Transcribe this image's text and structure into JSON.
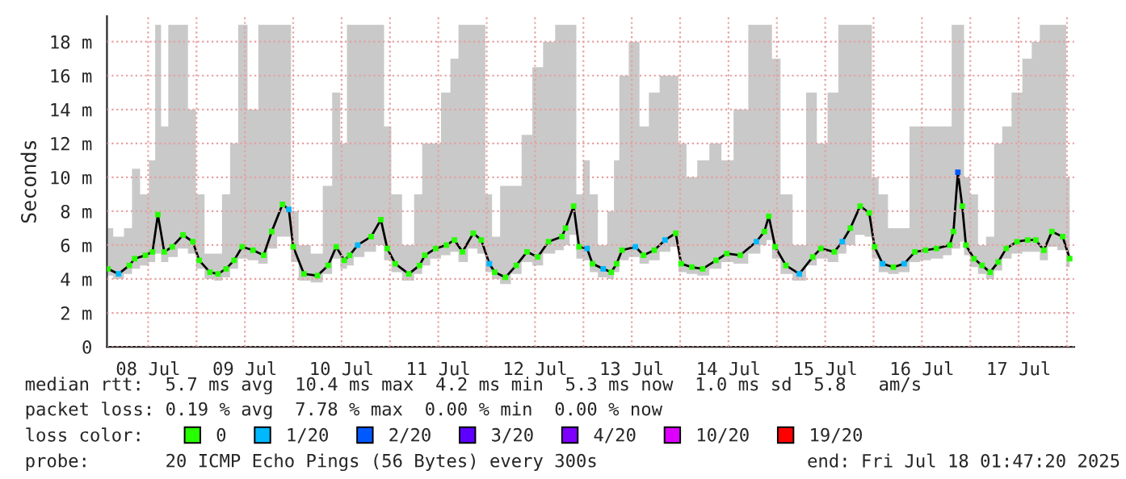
{
  "chart_data": {
    "type": "line",
    "ylabel": "Seconds",
    "legend_title": "loss color:",
    "legend": "bottom",
    "grid": true,
    "marker": "square",
    "xlim": [
      "2025-07-08T01:47",
      "2025-07-18T01:47"
    ],
    "xticks": [
      {
        "value": "2025-07-08T12:00",
        "label": "08 Jul"
      },
      {
        "value": "2025-07-09T00:00",
        "label": null
      },
      {
        "value": "2025-07-09T12:00",
        "label": "09 Jul"
      },
      {
        "value": "2025-07-10T00:00",
        "label": null
      },
      {
        "value": "2025-07-10T12:00",
        "label": "10 Jul"
      },
      {
        "value": "2025-07-11T00:00",
        "label": null
      },
      {
        "value": "2025-07-11T12:00",
        "label": "11 Jul"
      },
      {
        "value": "2025-07-12T00:00",
        "label": null
      },
      {
        "value": "2025-07-12T12:00",
        "label": "12 Jul"
      },
      {
        "value": "2025-07-13T00:00",
        "label": null
      },
      {
        "value": "2025-07-13T12:00",
        "label": "13 Jul"
      },
      {
        "value": "2025-07-14T00:00",
        "label": null
      },
      {
        "value": "2025-07-14T12:00",
        "label": "14 Jul"
      },
      {
        "value": "2025-07-15T00:00",
        "label": null
      },
      {
        "value": "2025-07-15T12:00",
        "label": "15 Jul"
      },
      {
        "value": "2025-07-16T00:00",
        "label": null
      },
      {
        "value": "2025-07-16T12:00",
        "label": "16 Jul"
      },
      {
        "value": "2025-07-17T00:00",
        "label": null
      },
      {
        "value": "2025-07-17T12:00",
        "label": "17 Jul"
      },
      {
        "value": "2025-07-18T00:00",
        "label": null
      }
    ],
    "ylim": [
      0,
      19.5
    ],
    "yticks": [
      0,
      {
        "value": 2,
        "label": "2 m"
      },
      {
        "value": 4,
        "label": "4 m"
      },
      {
        "value": 6,
        "label": "6 m"
      },
      {
        "value": 8,
        "label": "8 m"
      },
      {
        "value": 10,
        "label": "10 m"
      },
      {
        "value": 12,
        "label": "12 m"
      },
      {
        "value": 14,
        "label": "14 m"
      },
      {
        "value": 16,
        "label": "16 m"
      },
      {
        "value": 18,
        "label": "18 m"
      }
    ],
    "annotations": [
      "median rtt:  5.7 ms avg  10.4 ms max  4.2 ms min  5.3 ms now  1.0 ms sd  5.8   am/s",
      "packet loss: 0.19 % avg  7.78 % max  0.00 % min  0.00 % now",
      "probe:       20 ICMP Echo Pings (56 Bytes) every 300s",
      "end: Fri Jul 18 01:47:20 2025"
    ],
    "series": [
      {
        "color": "#000000",
        "x": [
          "2025-07-08T02:00",
          "2025-07-08T04:40",
          "2025-07-08T07:20",
          "2025-07-08T08:40",
          "2025-07-08T11:20",
          "2025-07-08T13:05",
          "2025-07-08T14:25",
          "2025-07-08T16:00",
          "2025-07-08T18:00",
          "2025-07-08T20:40",
          "2025-07-08T23:05",
          "2025-07-09T00:40",
          "2025-07-09T03:20",
          "2025-07-09T05:20",
          "2025-07-09T07:20",
          "2025-07-09T09:20",
          "2025-07-09T11:20",
          "2025-07-09T14:00",
          "2025-07-09T16:40",
          "2025-07-09T18:40",
          "2025-07-09T21:20",
          "2025-07-09T22:55",
          "2025-07-10T00:00",
          "2025-07-10T02:40",
          "2025-07-10T06:00",
          "2025-07-10T08:40",
          "2025-07-10T10:40",
          "2025-07-10T12:40",
          "2025-07-10T14:00",
          "2025-07-10T16:00",
          "2025-07-10T19:20",
          "2025-07-10T21:45",
          "2025-07-10T23:20",
          "2025-07-11T01:20",
          "2025-07-11T04:40",
          "2025-07-11T07:20",
          "2025-07-11T08:40",
          "2025-07-11T11:20",
          "2025-07-11T14:00",
          "2025-07-11T16:00",
          "2025-07-11T18:00",
          "2025-07-11T20:40",
          "2025-07-11T22:40",
          "2025-07-12T00:40",
          "2025-07-12T02:00",
          "2025-07-12T04:40",
          "2025-07-12T07:20",
          "2025-07-12T10:00",
          "2025-07-12T12:40",
          "2025-07-12T15:20",
          "2025-07-12T18:40",
          "2025-07-12T19:35",
          "2025-07-12T21:35",
          "2025-07-12T22:55",
          "2025-07-13T00:55",
          "2025-07-13T02:15",
          "2025-07-13T04:55",
          "2025-07-13T06:55",
          "2025-07-13T08:15",
          "2025-07-13T09:35",
          "2025-07-13T12:55",
          "2025-07-13T14:55",
          "2025-07-13T17:35",
          "2025-07-13T20:15",
          "2025-07-13T22:55",
          "2025-07-14T00:15",
          "2025-07-14T02:55",
          "2025-07-14T05:35",
          "2025-07-14T08:55",
          "2025-07-14T11:35",
          "2025-07-14T14:55",
          "2025-07-14T18:55",
          "2025-07-14T20:55",
          "2025-07-14T22:00",
          "2025-07-14T23:35",
          "2025-07-15T02:15",
          "2025-07-15T05:35",
          "2025-07-15T08:55",
          "2025-07-15T10:55",
          "2025-07-15T14:15",
          "2025-07-15T16:15",
          "2025-07-15T18:15",
          "2025-07-15T20:40",
          "2025-07-15T22:55",
          "2025-07-16T00:15",
          "2025-07-16T02:15",
          "2025-07-16T04:55",
          "2025-07-16T07:35",
          "2025-07-16T10:15",
          "2025-07-16T12:55",
          "2025-07-16T15:35",
          "2025-07-16T18:55",
          "2025-07-16T19:50",
          "2025-07-16T20:55",
          "2025-07-16T22:00",
          "2025-07-16T22:55",
          "2025-07-17T00:55",
          "2025-07-17T02:55",
          "2025-07-17T04:55",
          "2025-07-17T06:55",
          "2025-07-17T08:55",
          "2025-07-17T11:35",
          "2025-07-17T14:15",
          "2025-07-17T16:15",
          "2025-07-17T18:15",
          "2025-07-17T20:15",
          "2025-07-17T22:55",
          "2025-07-18T00:40"
        ],
        "values": [
          4.6,
          4.3,
          4.8,
          5.2,
          5.4,
          5.6,
          7.8,
          5.6,
          5.9,
          6.6,
          6.2,
          5.1,
          4.4,
          4.3,
          4.6,
          5.1,
          5.9,
          5.7,
          5.4,
          6.8,
          8.4,
          8.1,
          5.9,
          4.3,
          4.2,
          4.8,
          5.9,
          5.1,
          5.4,
          6.0,
          6.5,
          7.5,
          5.8,
          4.9,
          4.3,
          4.8,
          5.4,
          5.8,
          6.0,
          6.3,
          5.6,
          6.7,
          6.3,
          4.9,
          4.4,
          4.1,
          4.8,
          5.6,
          5.3,
          6.2,
          6.5,
          7.0,
          8.3,
          5.9,
          5.8,
          4.9,
          4.6,
          4.4,
          4.9,
          5.7,
          5.9,
          5.4,
          5.7,
          6.3,
          6.7,
          4.9,
          4.7,
          4.6,
          5.1,
          5.5,
          5.4,
          6.2,
          6.8,
          7.7,
          5.9,
          4.8,
          4.3,
          5.3,
          5.8,
          5.6,
          6.2,
          7.0,
          8.3,
          7.9,
          5.9,
          4.9,
          4.7,
          4.9,
          5.6,
          5.7,
          5.8,
          6.0,
          6.8,
          10.3,
          8.3,
          6.0,
          5.2,
          4.8,
          4.4,
          5.0,
          5.8,
          6.2,
          6.3,
          6.3,
          5.7,
          6.8,
          6.5,
          5.2
        ],
        "lower": [
          4.2,
          4.0,
          4.3,
          4.6,
          4.8,
          5.0,
          5.5,
          5.0,
          5.3,
          5.8,
          5.5,
          4.6,
          4.0,
          3.9,
          4.1,
          4.6,
          5.2,
          5.1,
          4.9,
          5.8,
          6.5,
          6.5,
          5.0,
          3.9,
          3.8,
          4.3,
          5.2,
          4.6,
          4.8,
          5.3,
          5.6,
          6.0,
          5.1,
          4.4,
          3.9,
          4.3,
          4.8,
          5.2,
          5.4,
          5.6,
          5.0,
          5.8,
          5.5,
          4.4,
          4.0,
          3.7,
          4.3,
          5.0,
          4.8,
          5.5,
          5.7,
          6.0,
          6.6,
          5.2,
          5.1,
          4.4,
          4.1,
          4.0,
          4.4,
          5.1,
          5.3,
          4.9,
          5.1,
          5.6,
          5.9,
          4.4,
          4.3,
          4.2,
          4.6,
          5.0,
          4.9,
          5.5,
          6.0,
          6.3,
          5.2,
          4.3,
          3.9,
          4.8,
          5.2,
          5.0,
          5.5,
          6.0,
          6.6,
          6.5,
          5.2,
          4.4,
          4.3,
          4.4,
          5.0,
          5.1,
          5.2,
          5.4,
          5.8,
          5.8,
          6.2,
          5.4,
          4.7,
          4.3,
          4.0,
          4.5,
          5.2,
          5.5,
          5.6,
          5.6,
          5.1,
          5.9,
          5.7,
          4.7
        ],
        "upper": [
          7,
          6.5,
          7,
          10.5,
          9,
          11,
          19,
          13,
          19,
          19,
          14,
          9,
          5.5,
          5.5,
          9,
          12,
          19,
          14,
          19,
          19,
          19,
          19,
          8,
          6,
          5.5,
          9.5,
          15,
          12,
          19,
          19,
          19,
          19,
          13,
          9,
          6,
          9,
          12,
          12,
          15,
          17,
          19,
          19,
          19,
          9,
          6.5,
          9.5,
          9.5,
          12.5,
          16.5,
          18,
          19,
          19,
          19,
          9,
          11,
          9,
          6,
          8,
          11,
          16,
          18,
          13,
          15,
          16,
          16,
          12,
          10,
          11,
          12,
          11,
          14,
          19,
          19,
          19,
          17,
          9,
          6,
          15,
          12,
          15,
          19,
          19,
          19,
          19,
          10,
          9,
          7,
          7,
          13,
          13,
          13,
          13,
          19,
          19,
          19,
          10,
          9,
          6,
          6.5,
          12,
          13,
          15,
          17,
          18,
          19,
          19,
          19,
          10
        ],
        "colors": [
          "#26ff00",
          "#00b8ff",
          "#26ff00",
          "#26ff00",
          "#26ff00",
          "#26ff00",
          "#26ff00",
          "#26ff00",
          "#26ff00",
          "#26ff00",
          "#26ff00",
          "#26ff00",
          "#26ff00",
          "#26ff00",
          "#26ff00",
          "#26ff00",
          "#26ff00",
          "#26ff00",
          "#26ff00",
          "#26ff00",
          "#26ff00",
          "#00b8ff",
          "#26ff00",
          "#26ff00",
          "#26ff00",
          "#26ff00",
          "#26ff00",
          "#26ff00",
          "#26ff00",
          "#00b8ff",
          "#26ff00",
          "#26ff00",
          "#26ff00",
          "#26ff00",
          "#26ff00",
          "#26ff00",
          "#26ff00",
          "#26ff00",
          "#26ff00",
          "#26ff00",
          "#26ff00",
          "#26ff00",
          "#26ff00",
          "#00b8ff",
          "#26ff00",
          "#26ff00",
          "#26ff00",
          "#26ff00",
          "#26ff00",
          "#26ff00",
          "#26ff00",
          "#26ff00",
          "#26ff00",
          "#26ff00",
          "#00b8ff",
          "#26ff00",
          "#00b8ff",
          "#26ff00",
          "#26ff00",
          "#26ff00",
          "#00b8ff",
          "#26ff00",
          "#26ff00",
          "#00b8ff",
          "#26ff00",
          "#26ff00",
          "#26ff00",
          "#26ff00",
          "#26ff00",
          "#26ff00",
          "#26ff00",
          "#00b8ff",
          "#26ff00",
          "#26ff00",
          "#26ff00",
          "#26ff00",
          "#00b8ff",
          "#26ff00",
          "#26ff00",
          "#26ff00",
          "#00b8ff",
          "#26ff00",
          "#26ff00",
          "#26ff00",
          "#26ff00",
          "#00b8ff",
          "#26ff00",
          "#00b8ff",
          "#26ff00",
          "#26ff00",
          "#26ff00",
          "#26ff00",
          "#26ff00",
          "#0059ff",
          "#26ff00",
          "#26ff00",
          "#26ff00",
          "#26ff00",
          "#26ff00",
          "#26ff00",
          "#26ff00",
          "#26ff00",
          "#26ff00",
          "#26ff00",
          "#26ff00",
          "#26ff00",
          "#26ff00",
          "#26ff00"
        ]
      },
      {
        "type": "scatter",
        "name": "0",
        "color": "#26ff00"
      },
      {
        "type": "scatter",
        "name": "1/20",
        "color": "#00b8ff"
      },
      {
        "type": "scatter",
        "name": "2/20",
        "color": "#0059ff"
      },
      {
        "type": "scatter",
        "name": "3/20",
        "color": "#5e00ff"
      },
      {
        "type": "scatter",
        "name": "4/20",
        "color": "#7e00ff"
      },
      {
        "type": "scatter",
        "name": "10/20",
        "color": "#dd00ff"
      },
      {
        "type": "scatter",
        "name": "19/20",
        "color": "#ff0000"
      }
    ]
  }
}
